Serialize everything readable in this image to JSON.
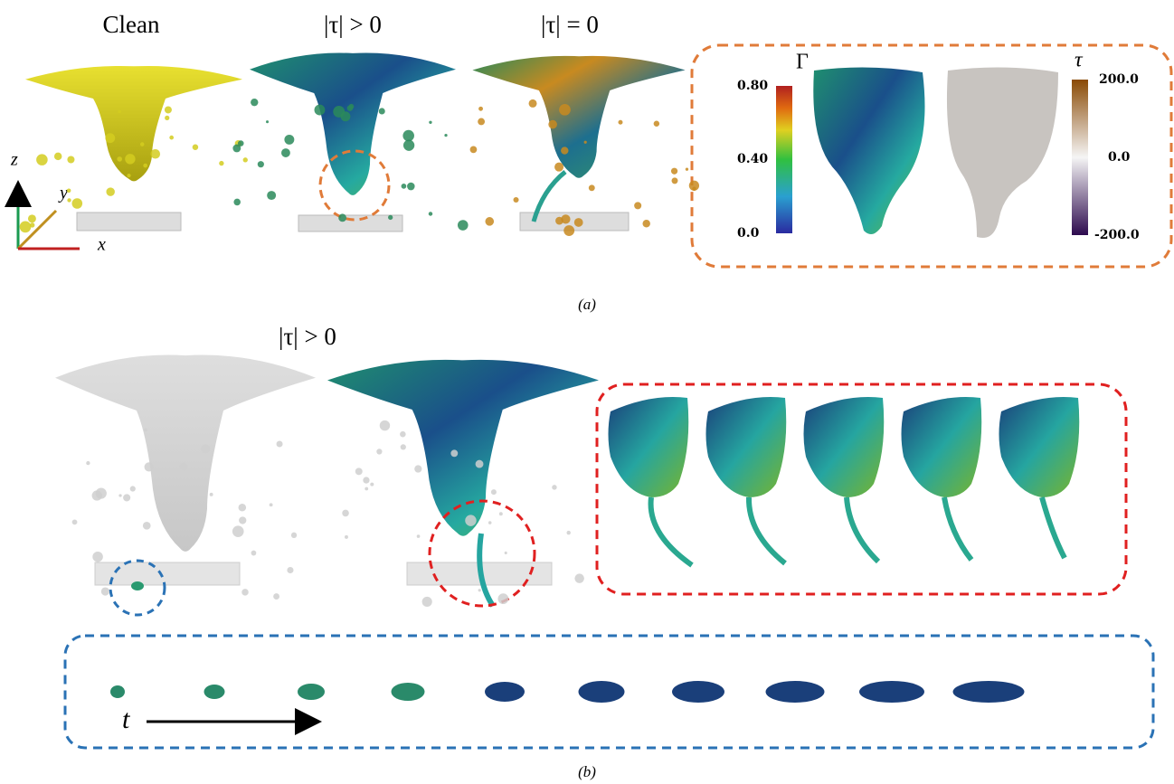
{
  "panel_a": {
    "labels": [
      "Clean",
      "|τ| > 0",
      "|τ| = 0"
    ],
    "axes": {
      "z": "z",
      "y": "y",
      "x": "x"
    },
    "gamma_colorbar": {
      "title": "Γ",
      "ticks": [
        "0.80",
        "0.40",
        "0.0"
      ]
    },
    "tau_colorbar": {
      "title": "τ",
      "ticks": [
        "200.0",
        "0.0",
        "-200.0"
      ]
    },
    "caption": "(a)"
  },
  "panel_b": {
    "label": "|τ| > 0",
    "time_label": "t",
    "caption": "(b)"
  }
}
